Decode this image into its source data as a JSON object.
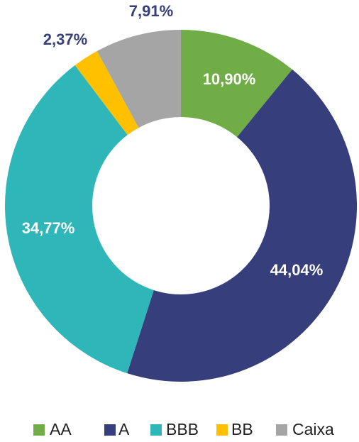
{
  "chart_data": {
    "type": "donut",
    "categories": [
      "AA",
      "A",
      "BBB",
      "BB",
      "Caixa"
    ],
    "values": [
      10.9,
      44.04,
      34.77,
      2.37,
      7.91
    ],
    "value_labels": [
      "10,90%",
      "44,04%",
      "34,77%",
      "2,37%",
      "7,91%"
    ],
    "colors": [
      "#70ad47",
      "#363f7c",
      "#2fb6b8",
      "#ffc000",
      "#a5a5a5"
    ],
    "legend": "bottom"
  }
}
